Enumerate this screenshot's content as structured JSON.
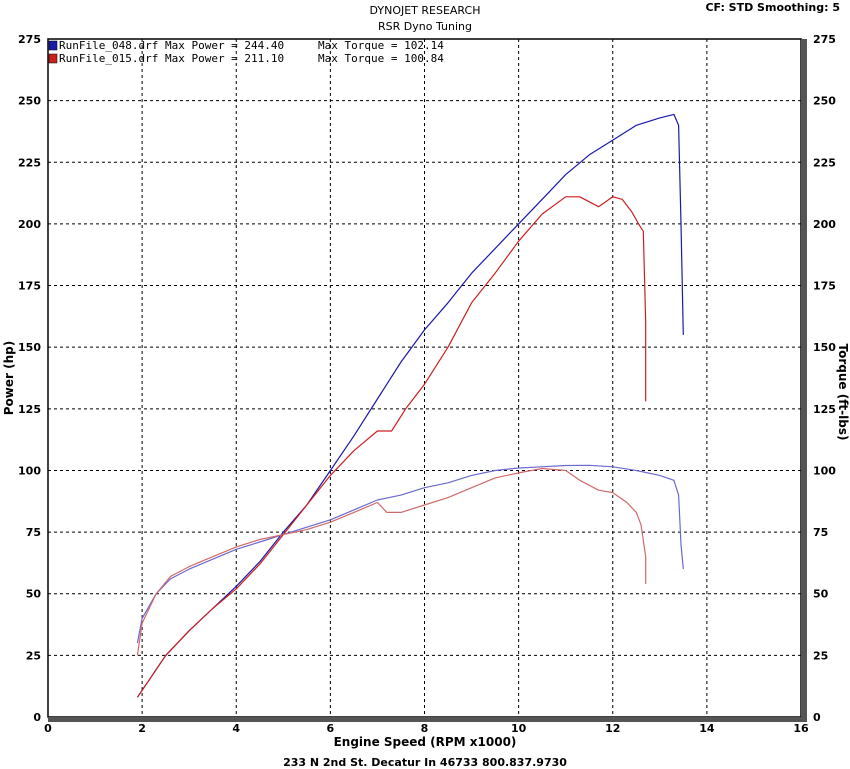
{
  "header": {
    "title": "DYNOJET RESEARCH",
    "subtitle": "RSR Dyno Tuning",
    "settings": "CF: STD  Smoothing: 5"
  },
  "footer": {
    "address": "233 N 2nd St. Decatur In 46733 800.837.9730"
  },
  "legend": [
    {
      "label": "RunFile_048.drf Max Power = 244.40",
      "torque": "Max Torque = 102.14",
      "color": "#1a1aa8"
    },
    {
      "label": "RunFile_015.drf Max Power = 211.10",
      "torque": "Max Torque = 100.84",
      "color": "#cc2020"
    }
  ],
  "chart_data": {
    "type": "line",
    "xlabel": "Engine Speed (RPM x1000)",
    "ylabel": "Power (hp)",
    "y2label": "Torque (ft-lbs)",
    "xlim": [
      0,
      16
    ],
    "ylim": [
      0,
      275
    ],
    "y2lim": [
      0,
      275
    ],
    "xticks": [
      "0",
      "2",
      "4",
      "6",
      "8",
      "10",
      "12",
      "14",
      "16"
    ],
    "yticks": [
      "0",
      "25",
      "50",
      "75",
      "100",
      "125",
      "150",
      "175",
      "200",
      "225",
      "250",
      "275"
    ],
    "grid": true,
    "legend_position": "top-left",
    "series": [
      {
        "name": "RunFile_048.drf",
        "kind": "power",
        "color": "#1a1aa8",
        "x": [
          1.9,
          2.5,
          3.0,
          3.5,
          4.0,
          4.5,
          5.0,
          5.5,
          6.0,
          6.5,
          7.0,
          7.5,
          8.0,
          8.5,
          9.0,
          9.5,
          10.0,
          10.5,
          11.0,
          11.5,
          12.0,
          12.5,
          13.0,
          13.3,
          13.4,
          13.45,
          13.5
        ],
        "y": [
          8,
          25,
          35,
          44,
          53,
          63,
          75,
          86,
          100,
          114,
          129,
          144,
          157,
          168,
          180,
          190,
          200,
          210,
          220,
          228,
          234,
          240,
          243,
          244.4,
          240,
          200,
          155
        ]
      },
      {
        "name": "RunFile_048.drf",
        "kind": "torque",
        "color": "#6a6ad0",
        "x": [
          1.9,
          2.0,
          2.3,
          2.6,
          3.0,
          3.5,
          4.0,
          4.5,
          5.0,
          5.5,
          6.0,
          6.5,
          7.0,
          7.5,
          8.0,
          8.5,
          9.0,
          9.5,
          10.0,
          10.5,
          11.0,
          11.5,
          12.0,
          12.5,
          13.0,
          13.3,
          13.4,
          13.45,
          13.5
        ],
        "y": [
          30,
          40,
          50,
          56,
          60,
          64,
          68,
          71,
          74,
          77,
          80,
          84,
          88,
          90,
          93,
          95,
          98,
          100,
          101,
          101.5,
          102,
          102.1,
          101.5,
          100,
          98,
          96,
          90,
          70,
          60
        ]
      },
      {
        "name": "RunFile_015.drf",
        "kind": "power",
        "color": "#cc2020",
        "x": [
          1.9,
          2.5,
          3.0,
          3.5,
          4.0,
          4.5,
          5.0,
          5.5,
          6.0,
          6.5,
          7.0,
          7.3,
          7.6,
          8.0,
          8.5,
          9.0,
          9.5,
          10.0,
          10.5,
          11.0,
          11.3,
          11.7,
          12.0,
          12.2,
          12.4,
          12.55,
          12.65,
          12.7,
          12.7
        ],
        "y": [
          8,
          25,
          35,
          44,
          52,
          62,
          74,
          86,
          98,
          108,
          116,
          116,
          125,
          135,
          150,
          168,
          180,
          193,
          204,
          211,
          211,
          207,
          211,
          210,
          205,
          200,
          197,
          160,
          128
        ]
      },
      {
        "name": "RunFile_015.drf",
        "kind": "torque",
        "color": "#d06a6a",
        "x": [
          1.9,
          2.0,
          2.3,
          2.6,
          3.0,
          3.5,
          4.0,
          4.5,
          5.0,
          5.5,
          6.0,
          6.5,
          7.0,
          7.2,
          7.5,
          8.0,
          8.5,
          9.0,
          9.5,
          10.0,
          10.5,
          11.0,
          11.3,
          11.7,
          12.0,
          12.3,
          12.5,
          12.6,
          12.7,
          12.7
        ],
        "y": [
          25,
          38,
          50,
          57,
          61,
          65,
          69,
          72,
          74,
          76,
          79,
          83,
          87,
          83,
          83,
          86,
          89,
          93,
          97,
          99,
          100.8,
          100,
          96,
          92,
          91,
          87,
          83,
          78,
          65,
          54
        ]
      }
    ]
  }
}
